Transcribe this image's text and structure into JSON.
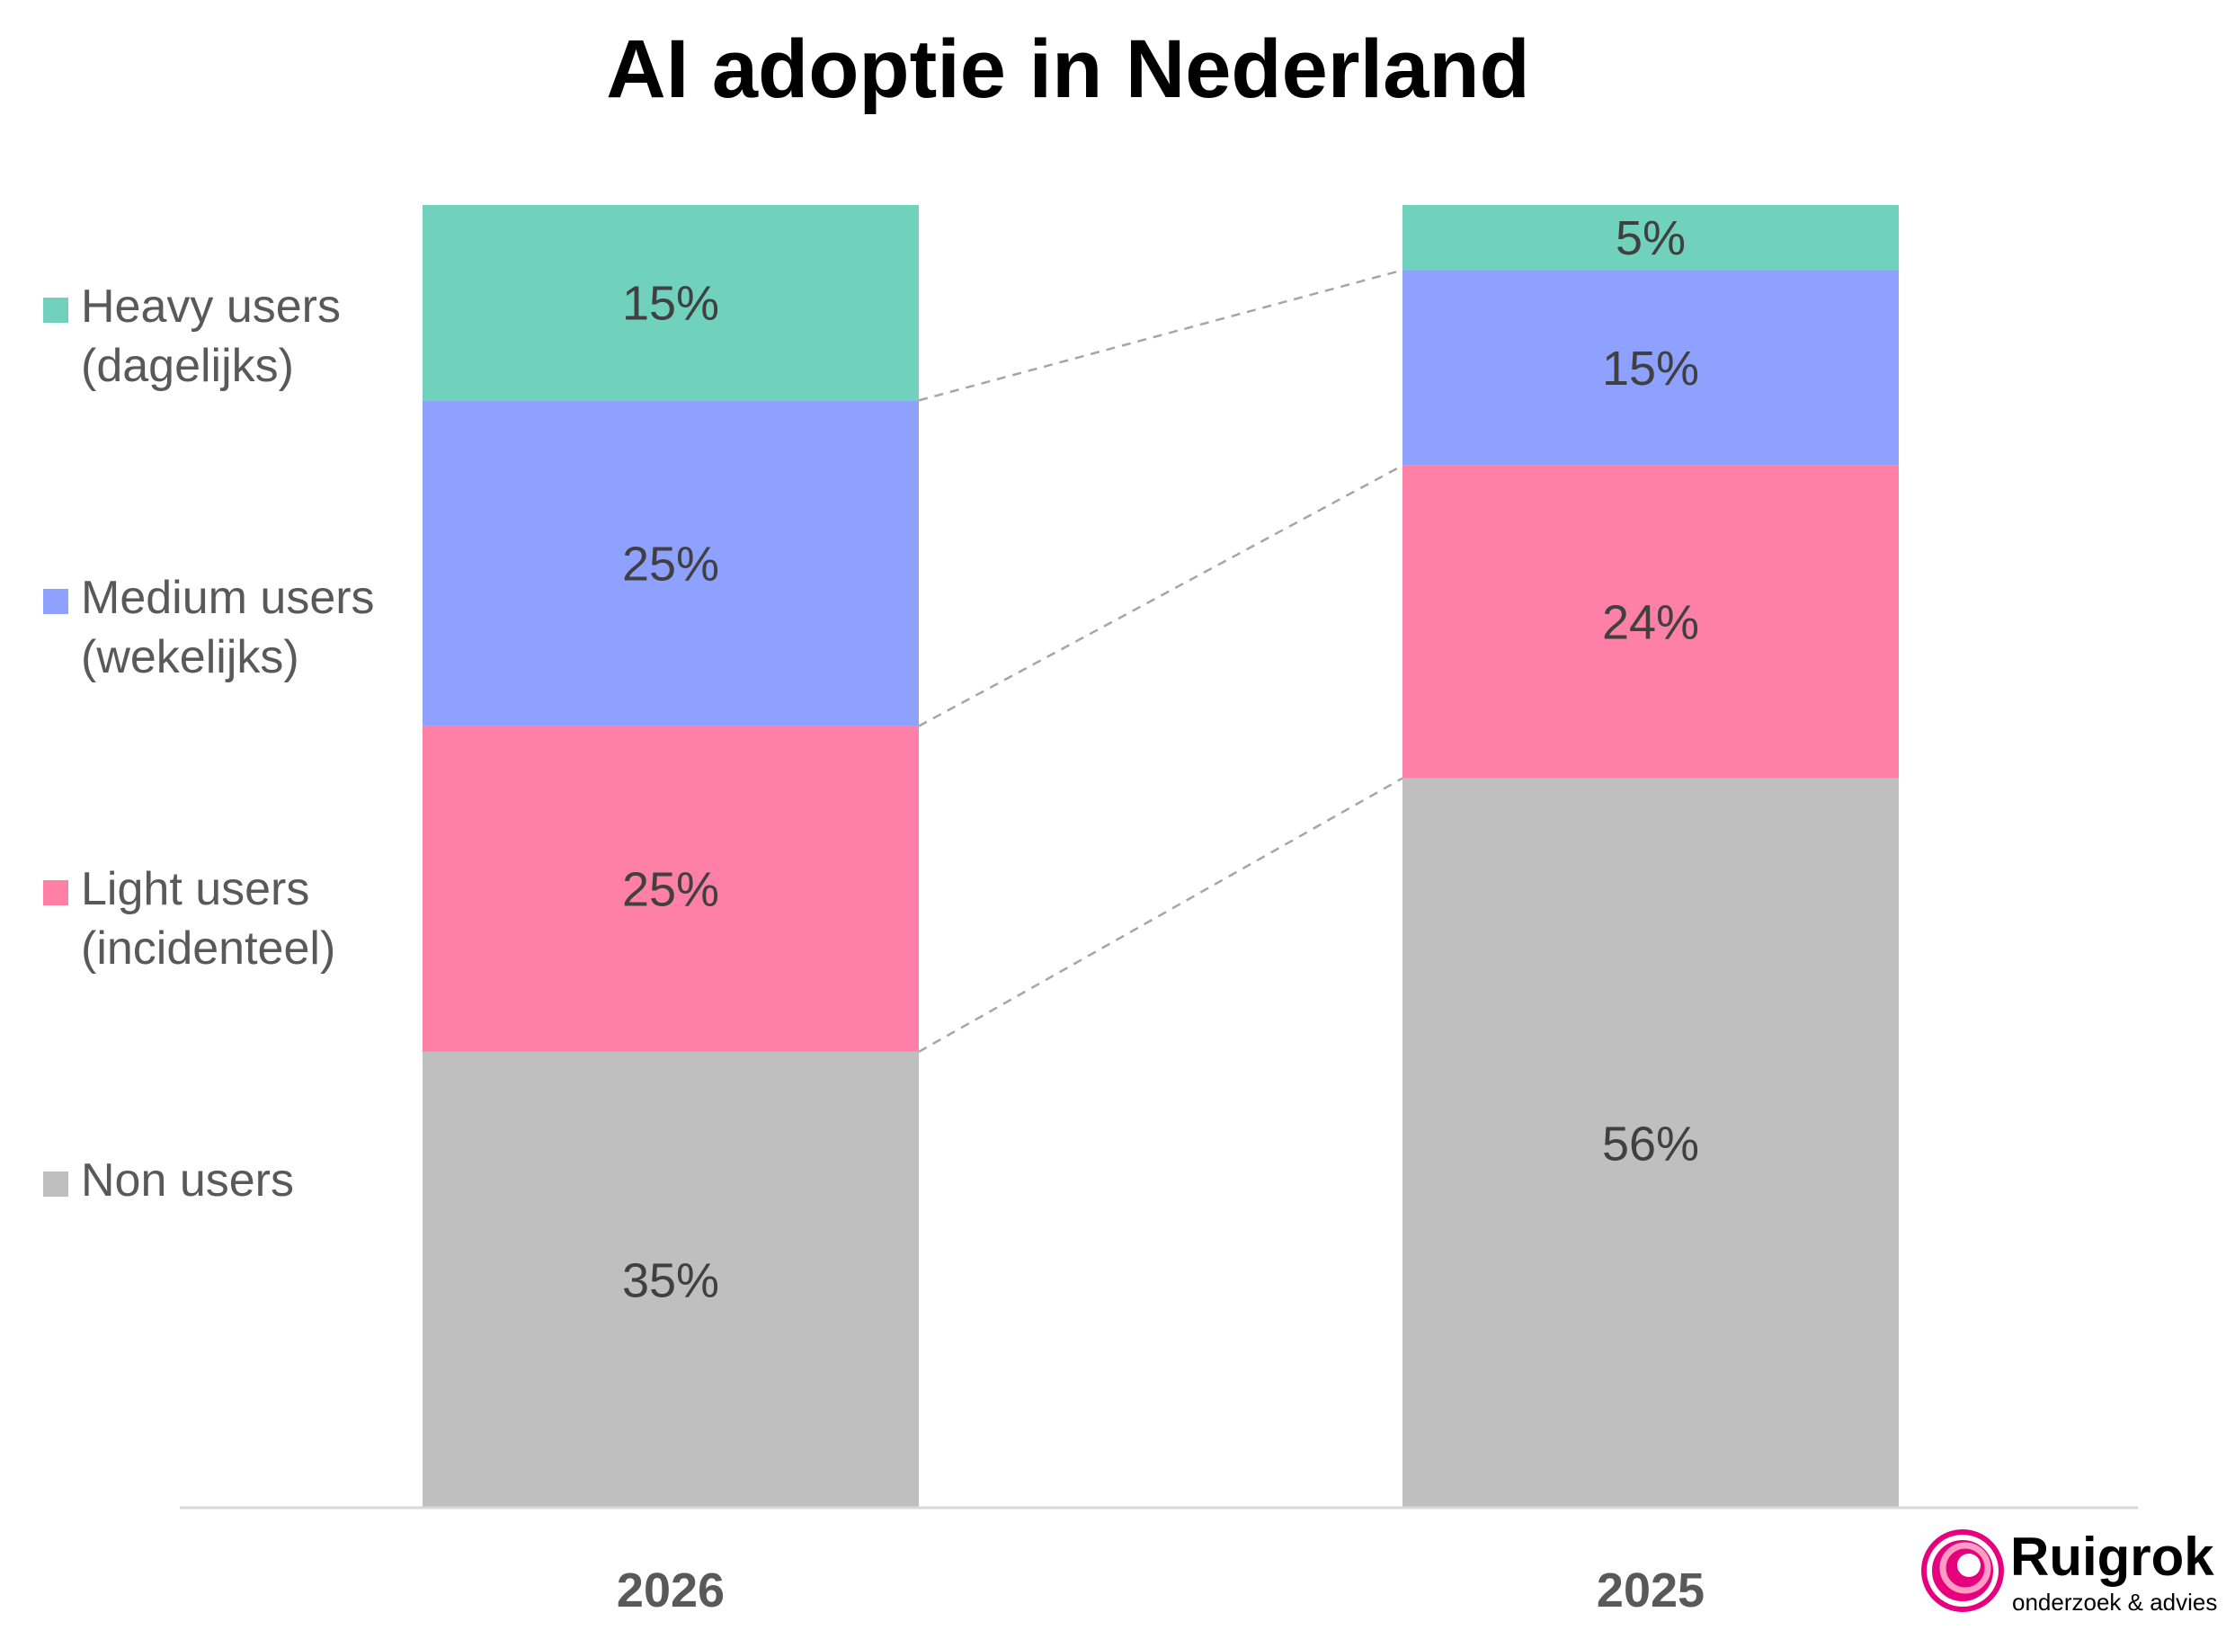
{
  "chart_data": {
    "type": "bar",
    "stacked": true,
    "title": "AI adoptie in Nederland",
    "categories": [
      "2026",
      "2025"
    ],
    "ylim": [
      0,
      100
    ],
    "grid": false,
    "legend_position": "left",
    "series": [
      {
        "name": "Non users",
        "values": [
          35,
          56
        ],
        "labels": [
          "35%",
          "56%"
        ],
        "color": "#BFBFBF"
      },
      {
        "name": "Light users (incidenteel)",
        "legend_lines": [
          "Light users",
          "(incidenteel)"
        ],
        "values": [
          25,
          24
        ],
        "labels": [
          "25%",
          "24%"
        ],
        "color": "#FF80A7"
      },
      {
        "name": "Medium users (wekelijks)",
        "legend_lines": [
          "Medium users",
          "(wekelijks)"
        ],
        "values": [
          25,
          15
        ],
        "labels": [
          "25%",
          "15%"
        ],
        "color": "#8EA1FF"
      },
      {
        "name": "Heavy users (dagelijks)",
        "legend_lines": [
          "Heavy users",
          "(dagelijks)"
        ],
        "values": [
          15,
          5
        ],
        "labels": [
          "15%",
          "5%"
        ],
        "color": "#70D1BD"
      }
    ],
    "connector_lines": "dashed",
    "connector_color": "#A6A6A6"
  },
  "logo": {
    "name": "Ruigrok",
    "tagline": "onderzoek & advies",
    "colors": [
      "#E6007E",
      "#FF80A7"
    ]
  }
}
